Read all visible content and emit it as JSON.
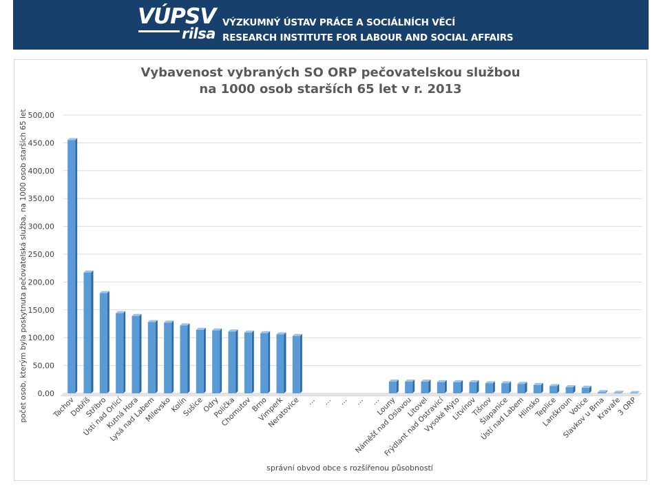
{
  "header": {
    "logo_main": "VÚPSV",
    "logo_sub": "rilsa",
    "institute_cz": "VÝZKUMNÝ ÚSTAV PRÁCE A SOCIÁLNÍCH VĚCÍ",
    "institute_en": "RESEARCH INSTITUTE FOR LABOUR AND SOCIAL AFFAIRS",
    "banner_color": "#17406c"
  },
  "chart_data": {
    "type": "bar",
    "title_line1": "Vybavenost vybraných SO ORP pečovatelskou službou",
    "title_line2": "na 1000 osob starších 65 let v r. 2013",
    "ylabel": "počet osob, kterým byla poskytnuta pečovatelská služba, na 1000 osob starších 65 let",
    "xlabel": "správní obvod obce s rozšířenou působností",
    "ylim": [
      0,
      500
    ],
    "yticks": [
      "0,00",
      "50,00",
      "100,00",
      "150,00",
      "200,00",
      "250,00",
      "300,00",
      "350,00",
      "400,00",
      "450,00",
      "500,00"
    ],
    "grid": true,
    "bar_color": "#5b9bd5",
    "categories": [
      "Tachov",
      "Dobříš",
      "Stříbro",
      "Ústí nad Orlicí",
      "Kutná Hora",
      "Lysá nad Labem",
      "Milevsko",
      "Kolín",
      "Sušice",
      "Odry",
      "Polička",
      "Chomutov",
      "Brno",
      "Vimperk",
      "Neratovice",
      "…",
      "…",
      "…",
      "…",
      "…",
      "Louny",
      "Náměšť nad Oslavou",
      "Litovel",
      "Frýdlant nad Ostravicí",
      "Vysoké Mýto",
      "Litvínov",
      "Tišnov",
      "Šlapanice",
      "Ústí nad Labem",
      "Hlinsko",
      "Teplice",
      "Lanškroun",
      "Votice",
      "Slavkov u Brna",
      "Kravaře",
      "3 ORP"
    ],
    "values": [
      455,
      217,
      180,
      144,
      139,
      128,
      127,
      122,
      114,
      113,
      111,
      109,
      108,
      106,
      103,
      null,
      null,
      null,
      null,
      null,
      21,
      21,
      21,
      20,
      20,
      20,
      18,
      18,
      17,
      15,
      13,
      11,
      10,
      2,
      1,
      0.5
    ]
  }
}
